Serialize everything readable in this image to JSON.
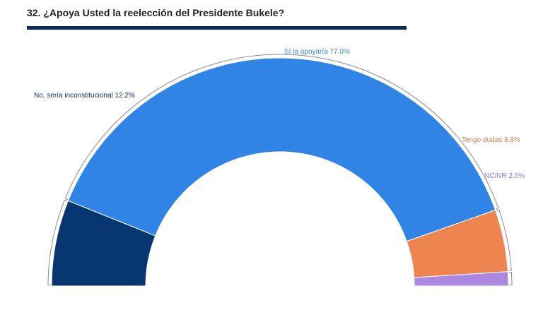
{
  "title": "32. ¿Apoya Usted la reelección del Presidente Bukele?",
  "chart_data": {
    "type": "pie",
    "variant": "half-donut",
    "title": "32. ¿Apoya Usted la reelección del Presidente Bukele?",
    "slices": [
      {
        "label": "No, sería inconstitucional",
        "value": 12.2,
        "display": "No, sería inconstitucional 12.2%",
        "color": "#083670"
      },
      {
        "label": "Sí la apoyaría",
        "value": 77.0,
        "display": "Sí la apoyaría 77.0%",
        "color": "#2f84e6"
      },
      {
        "label": "Tengo dudas",
        "value": 8.8,
        "display": "Tengo dudas 8.8%",
        "color": "#ee8550"
      },
      {
        "label": "NC/NR",
        "value": 2.0,
        "display": "NC/NR 2.0%",
        "color": "#ad88e0"
      }
    ],
    "label_colors": [
      "#0b2a5c",
      "#3a88d8",
      "#e07a45",
      "#9a78d0"
    ],
    "legend": "none"
  }
}
